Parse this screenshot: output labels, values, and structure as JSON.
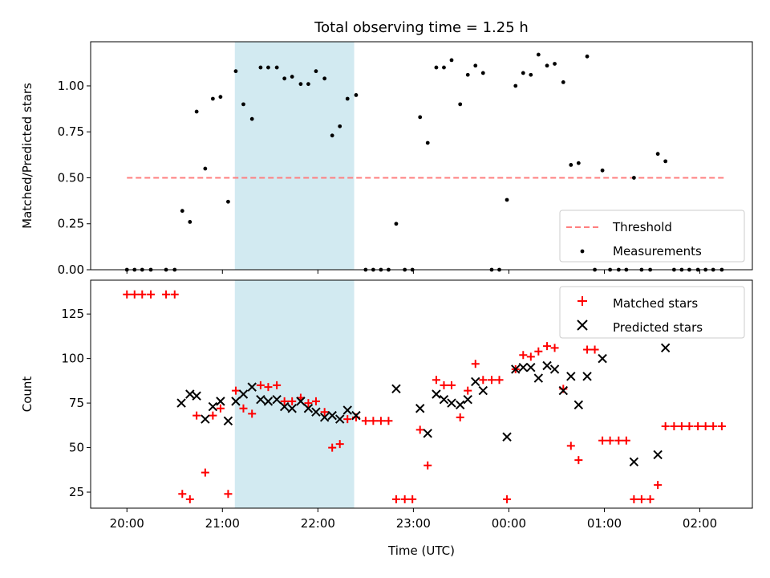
{
  "chart_data": [
    {
      "type": "scatter",
      "title": "Total observing time = 1.25 h",
      "xlabel": "",
      "ylabel": "Matched/Predicted stars",
      "x_unit": "hours since 20:00 UTC",
      "xlim": [
        -0.38,
        6.55
      ],
      "ylim": [
        0.0,
        1.24
      ],
      "yticks": [
        0.0,
        0.25,
        0.5,
        0.75,
        1.0
      ],
      "ytick_labels": [
        "0.00",
        "0.25",
        "0.50",
        "0.75",
        "1.00"
      ],
      "highlight_span": [
        1.13,
        2.38
      ],
      "highlight_color": "#add8e6",
      "legend_position": "lower right",
      "series": [
        {
          "name": "Threshold",
          "kind": "dashed-line",
          "color": "#ff7f7f",
          "x": [
            0.0,
            6.25
          ],
          "y": [
            0.5,
            0.5
          ]
        },
        {
          "name": "Measurements",
          "kind": "dots",
          "color": "#000000",
          "points": [
            [
              0.0,
              0.0
            ],
            [
              0.08,
              0.0
            ],
            [
              0.16,
              0.0
            ],
            [
              0.25,
              0.0
            ],
            [
              0.41,
              0.0
            ],
            [
              0.5,
              0.0
            ],
            [
              0.58,
              0.32
            ],
            [
              0.66,
              0.26
            ],
            [
              0.73,
              0.86
            ],
            [
              0.82,
              0.55
            ],
            [
              0.9,
              0.93
            ],
            [
              0.98,
              0.94
            ],
            [
              1.06,
              0.37
            ],
            [
              1.14,
              1.08
            ],
            [
              1.22,
              0.9
            ],
            [
              1.31,
              0.82
            ],
            [
              1.4,
              1.1
            ],
            [
              1.48,
              1.1
            ],
            [
              1.57,
              1.1
            ],
            [
              1.65,
              1.04
            ],
            [
              1.73,
              1.05
            ],
            [
              1.82,
              1.01
            ],
            [
              1.9,
              1.01
            ],
            [
              1.98,
              1.08
            ],
            [
              2.07,
              1.04
            ],
            [
              2.15,
              0.73
            ],
            [
              2.23,
              0.78
            ],
            [
              2.31,
              0.93
            ],
            [
              2.4,
              0.95
            ],
            [
              2.5,
              0.0
            ],
            [
              2.58,
              0.0
            ],
            [
              2.66,
              0.0
            ],
            [
              2.74,
              0.0
            ],
            [
              2.82,
              0.25
            ],
            [
              2.91,
              0.0
            ],
            [
              2.99,
              0.0
            ],
            [
              3.07,
              0.83
            ],
            [
              3.15,
              0.69
            ],
            [
              3.24,
              1.1
            ],
            [
              3.32,
              1.1
            ],
            [
              3.4,
              1.14
            ],
            [
              3.49,
              0.9
            ],
            [
              3.57,
              1.06
            ],
            [
              3.65,
              1.11
            ],
            [
              3.73,
              1.07
            ],
            [
              3.82,
              0.0
            ],
            [
              3.9,
              0.0
            ],
            [
              3.98,
              0.38
            ],
            [
              4.07,
              1.0
            ],
            [
              4.15,
              1.07
            ],
            [
              4.23,
              1.06
            ],
            [
              4.31,
              1.17
            ],
            [
              4.4,
              1.11
            ],
            [
              4.48,
              1.12
            ],
            [
              4.57,
              1.02
            ],
            [
              4.65,
              0.57
            ],
            [
              4.73,
              0.58
            ],
            [
              4.82,
              1.16
            ],
            [
              4.9,
              0.0
            ],
            [
              4.98,
              0.54
            ],
            [
              5.06,
              0.0
            ],
            [
              5.15,
              0.0
            ],
            [
              5.23,
              0.0
            ],
            [
              5.31,
              0.5
            ],
            [
              5.39,
              0.0
            ],
            [
              5.48,
              0.0
            ],
            [
              5.56,
              0.63
            ],
            [
              5.64,
              0.59
            ],
            [
              5.73,
              0.0
            ],
            [
              5.81,
              0.0
            ],
            [
              5.89,
              0.0
            ],
            [
              5.98,
              0.0
            ],
            [
              6.06,
              0.0
            ],
            [
              6.14,
              0.0
            ],
            [
              6.23,
              0.0
            ]
          ]
        }
      ]
    },
    {
      "type": "scatter",
      "title": "",
      "xlabel": "Time (UTC)",
      "ylabel": "Count",
      "x_unit": "hours since 20:00 UTC",
      "xlim": [
        -0.38,
        6.55
      ],
      "ylim": [
        16,
        144
      ],
      "yticks": [
        25,
        50,
        75,
        100,
        125
      ],
      "ytick_labels": [
        "25",
        "50",
        "75",
        "100",
        "125"
      ],
      "xticks": [
        0,
        1,
        2,
        3,
        4,
        5,
        6
      ],
      "xtick_labels": [
        "20:00",
        "21:00",
        "22:00",
        "23:00",
        "00:00",
        "01:00",
        "02:00"
      ],
      "highlight_span": [
        1.13,
        2.38
      ],
      "highlight_color": "#add8e6",
      "legend_position": "upper right",
      "series": [
        {
          "name": "Matched stars",
          "marker": "plus",
          "color": "#ff0000",
          "points": [
            [
              0.0,
              136
            ],
            [
              0.08,
              136
            ],
            [
              0.16,
              136
            ],
            [
              0.25,
              136
            ],
            [
              0.41,
              136
            ],
            [
              0.5,
              136
            ],
            [
              0.58,
              24
            ],
            [
              0.66,
              21
            ],
            [
              0.73,
              68
            ],
            [
              0.82,
              36
            ],
            [
              0.9,
              68
            ],
            [
              0.98,
              72
            ],
            [
              1.06,
              24
            ],
            [
              1.14,
              82
            ],
            [
              1.22,
              72
            ],
            [
              1.31,
              69
            ],
            [
              1.4,
              85
            ],
            [
              1.48,
              84
            ],
            [
              1.57,
              85
            ],
            [
              1.65,
              76
            ],
            [
              1.73,
              76
            ],
            [
              1.82,
              78
            ],
            [
              1.9,
              75
            ],
            [
              1.98,
              76
            ],
            [
              2.07,
              70
            ],
            [
              2.15,
              50
            ],
            [
              2.23,
              52
            ],
            [
              2.31,
              66
            ],
            [
              2.4,
              67
            ],
            [
              2.5,
              65
            ],
            [
              2.58,
              65
            ],
            [
              2.66,
              65
            ],
            [
              2.74,
              65
            ],
            [
              2.82,
              21
            ],
            [
              2.91,
              21
            ],
            [
              2.99,
              21
            ],
            [
              3.07,
              60
            ],
            [
              3.15,
              40
            ],
            [
              3.24,
              88
            ],
            [
              3.32,
              85
            ],
            [
              3.4,
              85
            ],
            [
              3.49,
              67
            ],
            [
              3.57,
              82
            ],
            [
              3.65,
              97
            ],
            [
              3.73,
              88
            ],
            [
              3.82,
              88
            ],
            [
              3.9,
              88
            ],
            [
              3.98,
              21
            ],
            [
              4.07,
              94
            ],
            [
              4.15,
              102
            ],
            [
              4.23,
              101
            ],
            [
              4.31,
              104
            ],
            [
              4.4,
              107
            ],
            [
              4.48,
              106
            ],
            [
              4.57,
              83
            ],
            [
              4.65,
              51
            ],
            [
              4.73,
              43
            ],
            [
              4.82,
              105
            ],
            [
              4.9,
              105
            ],
            [
              4.98,
              54
            ],
            [
              5.06,
              54
            ],
            [
              5.15,
              54
            ],
            [
              5.23,
              54
            ],
            [
              5.31,
              21
            ],
            [
              5.39,
              21
            ],
            [
              5.48,
              21
            ],
            [
              5.56,
              29
            ],
            [
              5.64,
              62
            ],
            [
              5.73,
              62
            ],
            [
              5.81,
              62
            ],
            [
              5.89,
              62
            ],
            [
              5.98,
              62
            ],
            [
              6.06,
              62
            ],
            [
              6.14,
              62
            ],
            [
              6.23,
              62
            ]
          ]
        },
        {
          "name": "Predicted stars",
          "marker": "x",
          "color": "#000000",
          "points": [
            [
              0.57,
              75
            ],
            [
              0.66,
              80
            ],
            [
              0.73,
              79
            ],
            [
              0.82,
              66
            ],
            [
              0.9,
              73
            ],
            [
              0.98,
              76
            ],
            [
              1.06,
              65
            ],
            [
              1.14,
              76
            ],
            [
              1.22,
              80
            ],
            [
              1.31,
              84
            ],
            [
              1.4,
              77
            ],
            [
              1.48,
              76
            ],
            [
              1.57,
              77
            ],
            [
              1.65,
              73
            ],
            [
              1.73,
              72
            ],
            [
              1.82,
              76
            ],
            [
              1.9,
              72
            ],
            [
              1.98,
              70
            ],
            [
              2.07,
              67
            ],
            [
              2.15,
              68
            ],
            [
              2.23,
              66
            ],
            [
              2.31,
              71
            ],
            [
              2.4,
              68
            ],
            [
              2.82,
              83
            ],
            [
              3.07,
              72
            ],
            [
              3.15,
              58
            ],
            [
              3.24,
              80
            ],
            [
              3.32,
              77
            ],
            [
              3.4,
              75
            ],
            [
              3.49,
              74
            ],
            [
              3.57,
              77
            ],
            [
              3.65,
              87
            ],
            [
              3.73,
              82
            ],
            [
              3.98,
              56
            ],
            [
              4.07,
              94
            ],
            [
              4.15,
              95
            ],
            [
              4.23,
              95
            ],
            [
              4.31,
              89
            ],
            [
              4.4,
              96
            ],
            [
              4.48,
              94
            ],
            [
              4.57,
              82
            ],
            [
              4.65,
              90
            ],
            [
              4.73,
              74
            ],
            [
              4.82,
              90
            ],
            [
              4.98,
              100
            ],
            [
              5.31,
              42
            ],
            [
              5.56,
              46
            ],
            [
              5.64,
              106
            ]
          ]
        }
      ]
    }
  ]
}
